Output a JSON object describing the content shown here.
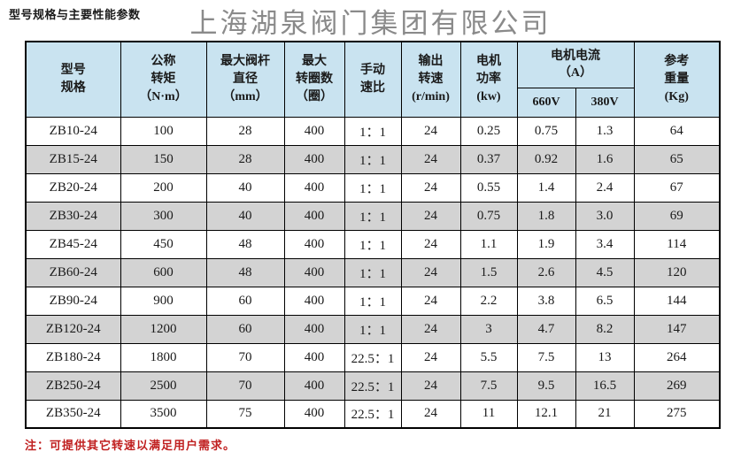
{
  "page": {
    "section_label": "型号规格与主要性能参数",
    "company_title": "上海湖泉阀门集团有限公司",
    "footer_note": "注：可提供其它转速以满足用户需求。"
  },
  "colors": {
    "header_bg": "#c9e3f0",
    "alt_row_bg": "#d3d3d3",
    "row_bg": "#ffffff",
    "border": "#000000",
    "title_gray": "#8a8a8a",
    "note_red": "#c02020"
  },
  "table": {
    "headers": {
      "model": "型号\n规格",
      "torque": "公称\n转矩\n（N·m）",
      "stem_diameter": "最大阀杆\n直径\n（mm）",
      "max_turns": "最大\n转圈数\n（圈）",
      "manual_ratio": "手动\n速比",
      "output_speed": "输出\n转速\n(r/min)",
      "motor_power": "电机\n功率\n(kw)",
      "motor_current_group": "电机电流\n（A）",
      "current_660v": "660V",
      "current_380v": "380V",
      "ref_weight": "参考\n重量\n(Kg)"
    },
    "rows": [
      [
        "ZB10-24",
        "100",
        "28",
        "400",
        "1：1",
        "24",
        "0.25",
        "0.75",
        "1.3",
        "64"
      ],
      [
        "ZB15-24",
        "150",
        "28",
        "400",
        "1：1",
        "24",
        "0.37",
        "0.92",
        "1.6",
        "65"
      ],
      [
        "ZB20-24",
        "200",
        "40",
        "400",
        "1：1",
        "24",
        "0.55",
        "1.4",
        "2.4",
        "67"
      ],
      [
        "ZB30-24",
        "300",
        "40",
        "400",
        "1：1",
        "24",
        "0.75",
        "1.8",
        "3.0",
        "69"
      ],
      [
        "ZB45-24",
        "450",
        "48",
        "400",
        "1：1",
        "24",
        "1.1",
        "1.9",
        "3.4",
        "114"
      ],
      [
        "ZB60-24",
        "600",
        "48",
        "400",
        "1：1",
        "24",
        "1.5",
        "2.6",
        "4.5",
        "120"
      ],
      [
        "ZB90-24",
        "900",
        "60",
        "400",
        "1：1",
        "24",
        "2.2",
        "3.8",
        "6.5",
        "144"
      ],
      [
        "ZB120-24",
        "1200",
        "60",
        "400",
        "1：1",
        "24",
        "3",
        "4.7",
        "8.2",
        "147"
      ],
      [
        "ZB180-24",
        "1800",
        "70",
        "400",
        "22.5：1",
        "24",
        "5.5",
        "7.5",
        "13",
        "264"
      ],
      [
        "ZB250-24",
        "2500",
        "70",
        "400",
        "22.5：1",
        "24",
        "7.5",
        "9.5",
        "16.5",
        "269"
      ],
      [
        "ZB350-24",
        "3500",
        "75",
        "400",
        "22.5：1",
        "24",
        "11",
        "12.1",
        "21",
        "275"
      ]
    ]
  }
}
